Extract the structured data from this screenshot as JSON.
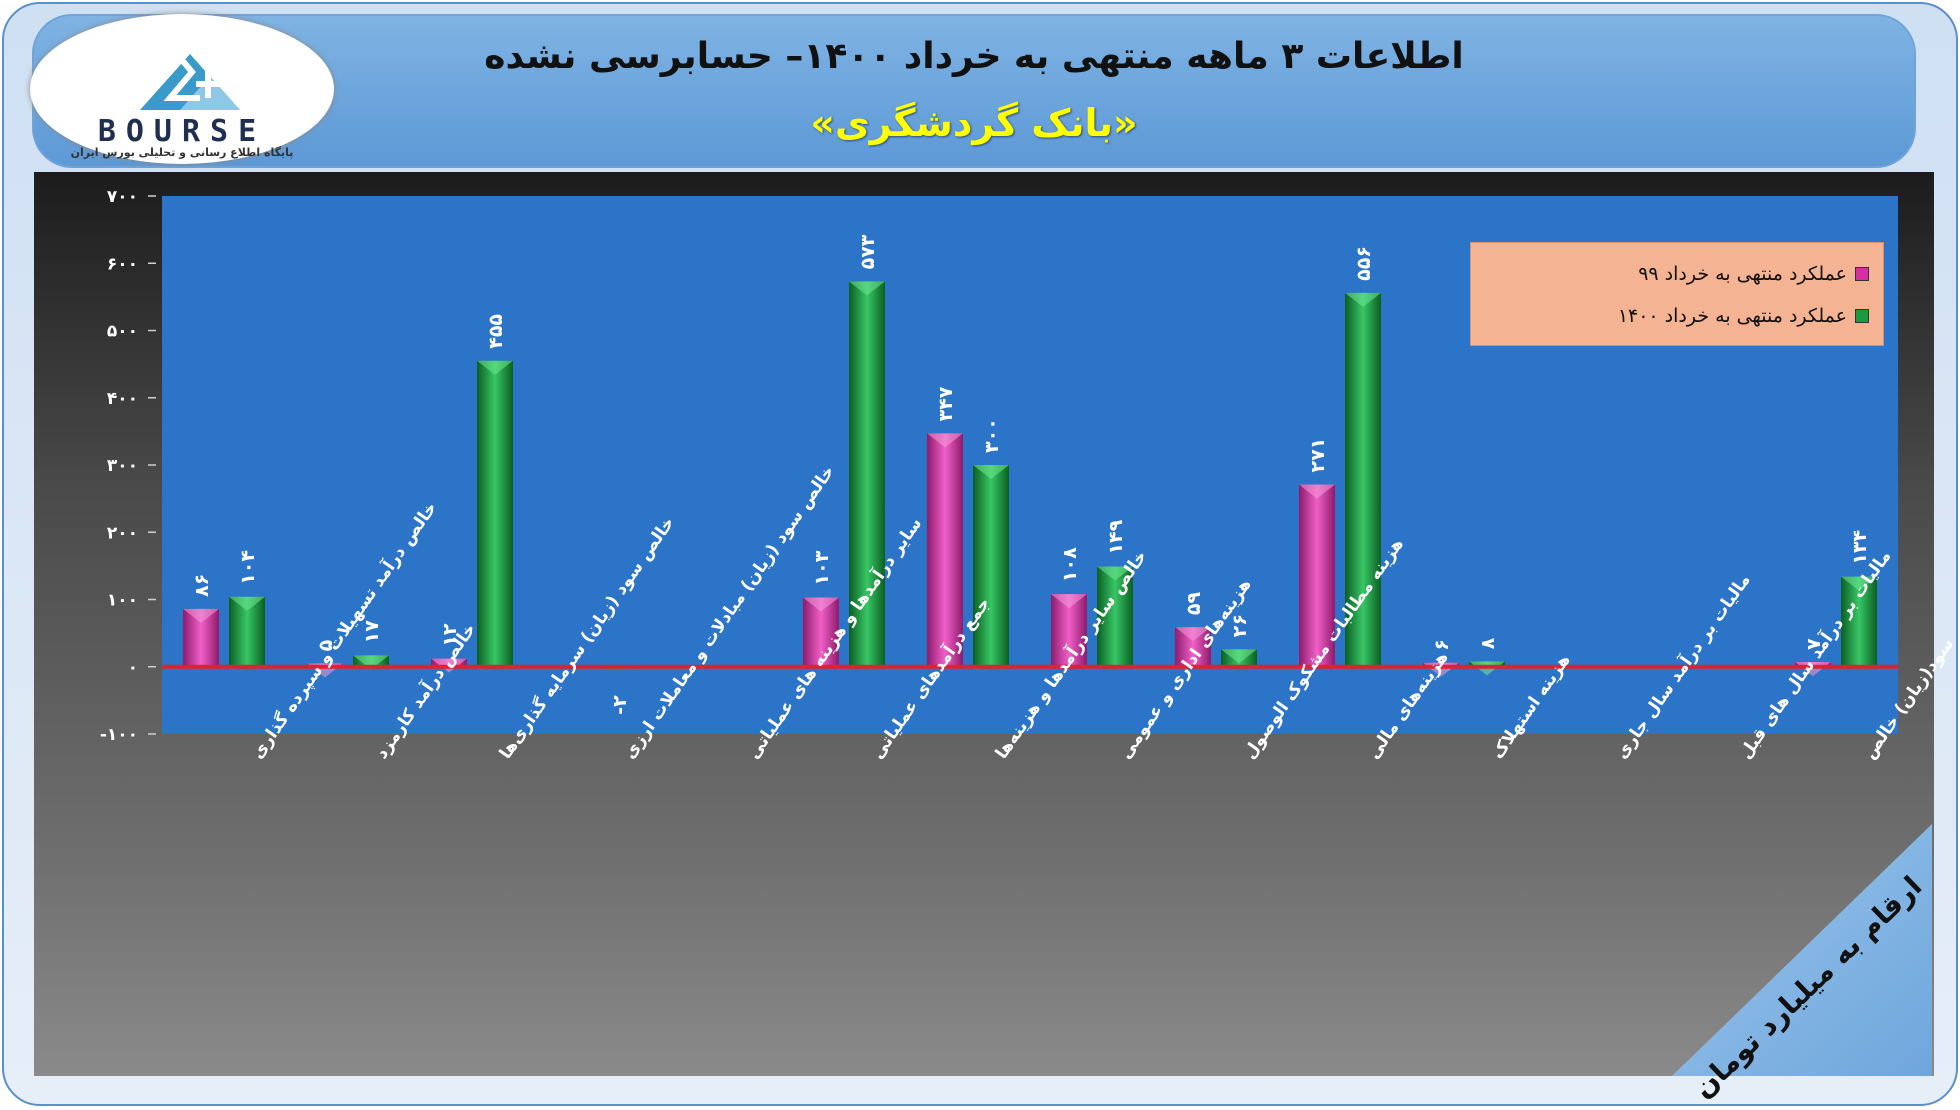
{
  "header": {
    "title_line1": "اطلاعات ۳ ماهه منتهی به خرداد ۱۴۰۰– حسابرسی نشده",
    "title_line2": "«بانک گردشگری»"
  },
  "logo": {
    "brand": "BOURSE",
    "subtitle": "پایگاه اطلاع رسانی و تحلیلی بورس ایران"
  },
  "units_label": "ارقام به میلیارد تومان",
  "colors": {
    "series_99": "#d62fa4",
    "series_1400": "#1a9a3f",
    "plot_bg": "#2b74c8",
    "zero_line": "#e0222a"
  },
  "chart_data": {
    "type": "bar",
    "categories": [
      "خالص درآمد تسهیلات و سپرده گذاری",
      "خالص درآمد کارمزد",
      "خالص سود (زیان) سرمایه گذاری‌ها",
      "خالص سود (زیان) مبادلات و معاملات ارزی",
      "سایر درآمدها و هزینه های عملیاتی",
      "جمع درآمدهای عملیاتی",
      "خالص سایر درآمدها و هزینه‌ها",
      "هزینه‌های اداری و عمومی",
      "هزینه مطالبات مشکوک الوصول",
      "هزینه‌های مالی",
      "هزینه استهلاک",
      "مالیات بر درآمد سال جاری",
      "مالیات بر درآمد سال های قبل",
      "سود(زیان) خالص"
    ],
    "series": [
      {
        "name": "عملکرد منتهی به خرداد ۹۹",
        "values": [
          86,
          5,
          12,
          null,
          null,
          103,
          347,
          108,
          59,
          271,
          6,
          null,
          null,
          7
        ],
        "labels": [
          "۸۶",
          "۵",
          "۱۲",
          "",
          "",
          "۱۰۳",
          "۳۴۷",
          "۱۰۸",
          "۵۹",
          "۲۷۱",
          "۶",
          "",
          "",
          "۷"
        ]
      },
      {
        "name": "عملکرد منتهی به خرداد ۱۴۰۰",
        "values": [
          104,
          17,
          455,
          -2,
          null,
          573,
          300,
          149,
          26,
          556,
          8,
          null,
          null,
          134
        ],
        "labels": [
          "۱۰۴",
          "۱۷",
          "۴۵۵",
          "-۲",
          "",
          "۵۷۳",
          "۳۰۰",
          "۱۴۹",
          "۲۶",
          "۵۵۶",
          "۸",
          "",
          "",
          "۱۳۴"
        ]
      }
    ],
    "ylim": [
      -100,
      700
    ],
    "yticks": [
      -100,
      0,
      100,
      200,
      300,
      400,
      500,
      600,
      700
    ],
    "ytick_labels": [
      "-۱۰۰",
      "۰",
      "۱۰۰",
      "۲۰۰",
      "۳۰۰",
      "۴۰۰",
      "۵۰۰",
      "۶۰۰",
      "۷۰۰"
    ],
    "legend_position": "top-right",
    "grid": false
  }
}
